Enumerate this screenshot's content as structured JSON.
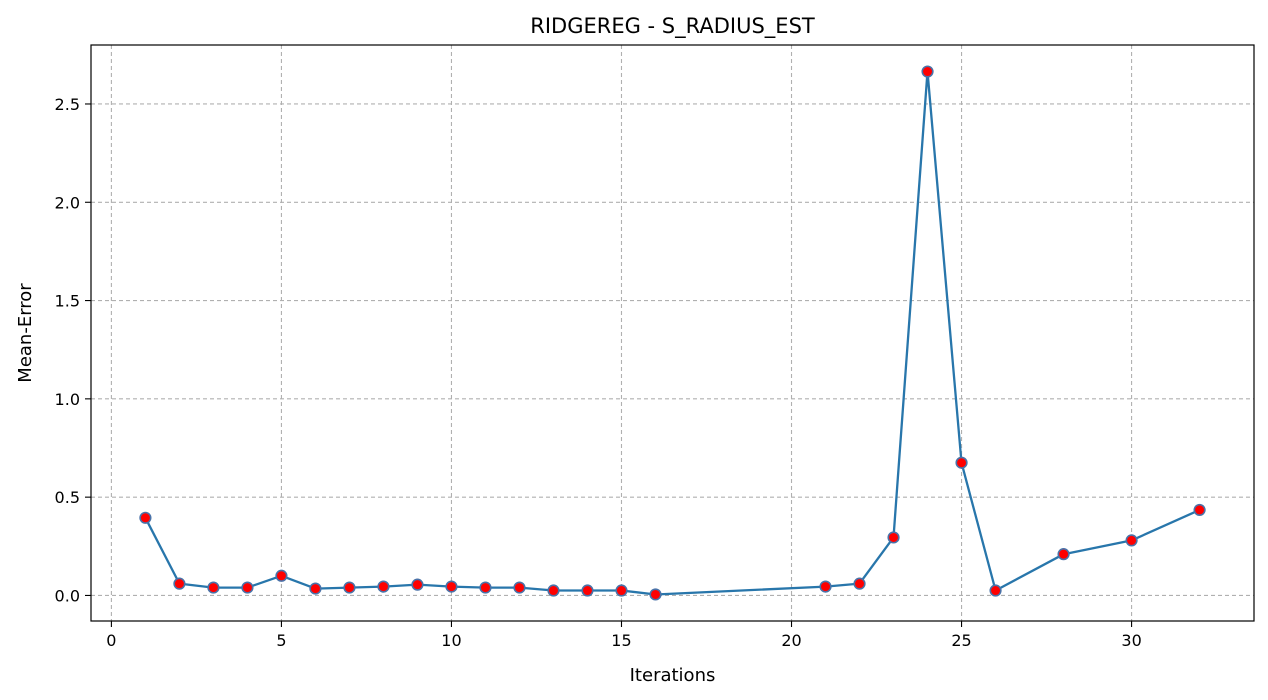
{
  "chart_data": {
    "type": "line",
    "title": "RIDGEREG - S_RADIUS_EST",
    "xlabel": "Iterations",
    "ylabel": "Mean-Error",
    "xlim": [
      -0.6,
      33.6
    ],
    "ylim": [
      -0.13,
      2.8
    ],
    "xticks": [
      0,
      5,
      10,
      15,
      20,
      25,
      30
    ],
    "yticks": [
      0.0,
      0.5,
      1.0,
      1.5,
      2.0,
      2.5
    ],
    "ytick_labels": [
      "0.0",
      "0.5",
      "1.0",
      "1.5",
      "2.0",
      "2.5"
    ],
    "grid": true,
    "series": [
      {
        "x": [
          1,
          2,
          3,
          4,
          5,
          6,
          7,
          8,
          9,
          10,
          11,
          12,
          13,
          14,
          15,
          16,
          21,
          22,
          23,
          24,
          25,
          26,
          28,
          30,
          32
        ],
        "y": [
          0.395,
          0.06,
          0.04,
          0.04,
          0.1,
          0.035,
          0.04,
          0.045,
          0.055,
          0.045,
          0.04,
          0.04,
          0.025,
          0.025,
          0.025,
          0.005,
          0.045,
          0.06,
          0.295,
          2.665,
          0.675,
          0.025,
          0.21,
          0.28,
          0.435
        ],
        "line_color": "#2876ab",
        "marker_color": "#ff0000",
        "marker_edge_color": "#4a72a8"
      }
    ]
  }
}
